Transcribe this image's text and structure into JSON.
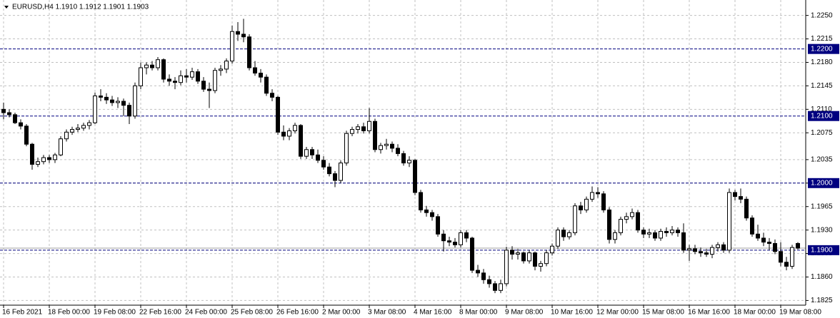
{
  "chart_data": {
    "type": "candlestick",
    "title": "EURUSD,H4  1.1910 1.1912 1.1901 1.1903",
    "ylim": [
      1.1818,
      1.2273
    ],
    "yticks": [
      {
        "value": 1.225,
        "label": "1.2250"
      },
      {
        "value": 1.2215,
        "label": "1.2215"
      },
      {
        "value": 1.218,
        "label": "1.2180"
      },
      {
        "value": 1.2145,
        "label": "1.2145"
      },
      {
        "value": 1.211,
        "label": "1.2110"
      },
      {
        "value": 1.2075,
        "label": "1.2075"
      },
      {
        "value": 1.2035,
        "label": "1.2035"
      },
      {
        "value": 1.2,
        "label": "1.2000"
      },
      {
        "value": 1.1965,
        "label": "1.1965"
      },
      {
        "value": 1.193,
        "label": "1.1930"
      },
      {
        "value": 1.1895,
        "label": "1.1895"
      },
      {
        "value": 1.186,
        "label": "1.1860"
      },
      {
        "value": 1.1825,
        "label": "1.1825"
      }
    ],
    "grid": true,
    "levels": [
      {
        "value": 1.22,
        "label": "1.2200"
      },
      {
        "value": 1.21,
        "label": "1.2100"
      },
      {
        "value": 1.2,
        "label": "1.2000"
      },
      {
        "value": 1.19,
        "label": "1.1900"
      }
    ],
    "colors": {
      "up": "#ffffff",
      "down": "#000000",
      "outline": "#000000",
      "level": "#000080",
      "price_line": "#a0a0a0"
    },
    "categories": [
      "16 Feb 2021",
      null,
      null,
      null,
      null,
      null,
      null,
      null,
      "18 Feb 00:00",
      null,
      null,
      null,
      null,
      null,
      null,
      null,
      "19 Feb 08:00",
      null,
      null,
      null,
      null,
      null,
      null,
      null,
      "22 Feb 16:00",
      null,
      null,
      null,
      null,
      null,
      null,
      null,
      "24 Feb 00:00",
      null,
      null,
      null,
      null,
      null,
      null,
      null,
      "25 Feb 08:00",
      null,
      null,
      null,
      null,
      null,
      null,
      null,
      "26 Feb 16:00",
      null,
      null,
      null,
      null,
      null,
      null,
      null,
      "2 Mar 00:00",
      null,
      null,
      null,
      null,
      null,
      null,
      null,
      "3 Mar 08:00",
      null,
      null,
      null,
      null,
      null,
      null,
      null,
      "4 Mar 16:00",
      null,
      null,
      null,
      null,
      null,
      null,
      null,
      "8 Mar 00:00",
      null,
      null,
      null,
      null,
      null,
      null,
      null,
      "9 Mar 08:00",
      null,
      null,
      null,
      null,
      null,
      null,
      null,
      "10 Mar 16:00",
      null,
      null,
      null,
      null,
      null,
      null,
      null,
      "12 Mar 00:00",
      null,
      null,
      null,
      null,
      null,
      null,
      null,
      "15 Mar 08:00",
      null,
      null,
      null,
      null,
      null,
      null,
      null,
      "16 Mar 16:00",
      null,
      null,
      null,
      null,
      null,
      null,
      null,
      "18 Mar 00:00",
      null,
      null,
      null,
      null,
      null,
      null,
      null,
      "19 Mar 08:00",
      null,
      null,
      null
    ],
    "candles": [
      [
        1.211,
        1.212,
        1.2095,
        1.2105
      ],
      [
        1.2105,
        1.211,
        1.2098,
        1.2102
      ],
      [
        1.2102,
        1.2105,
        1.2088,
        1.209
      ],
      [
        1.209,
        1.2095,
        1.208,
        1.2085
      ],
      [
        1.2085,
        1.2088,
        1.2055,
        1.2058
      ],
      [
        1.2058,
        1.206,
        1.202,
        1.2028
      ],
      [
        1.2028,
        1.2038,
        1.2024,
        1.2032
      ],
      [
        1.2032,
        1.2042,
        1.2028,
        1.2038
      ],
      [
        1.2038,
        1.2042,
        1.203,
        1.2035
      ],
      [
        1.2035,
        1.2045,
        1.203,
        1.2042
      ],
      [
        1.2042,
        1.207,
        1.204,
        1.2066
      ],
      [
        1.2066,
        1.208,
        1.2062,
        1.2076
      ],
      [
        1.2076,
        1.2084,
        1.2072,
        1.208
      ],
      [
        1.208,
        1.2088,
        1.2076,
        1.2082
      ],
      [
        1.2082,
        1.209,
        1.2078,
        1.2086
      ],
      [
        1.2086,
        1.2094,
        1.208,
        1.209
      ],
      [
        1.209,
        1.2135,
        1.2088,
        1.213
      ],
      [
        1.213,
        1.214,
        1.2122,
        1.2128
      ],
      [
        1.2128,
        1.2134,
        1.2118,
        1.2124
      ],
      [
        1.2124,
        1.213,
        1.2115,
        1.212
      ],
      [
        1.212,
        1.2128,
        1.2112,
        1.2122
      ],
      [
        1.2122,
        1.2126,
        1.21,
        1.2116
      ],
      [
        1.2116,
        1.212,
        1.2088,
        1.21
      ],
      [
        1.21,
        1.215,
        1.2096,
        1.2145
      ],
      [
        1.2145,
        1.218,
        1.214,
        1.2172
      ],
      [
        1.2172,
        1.218,
        1.2162,
        1.2176
      ],
      [
        1.2176,
        1.2182,
        1.2168,
        1.2172
      ],
      [
        1.2172,
        1.2188,
        1.2168,
        1.2184
      ],
      [
        1.2184,
        1.2186,
        1.215,
        1.2155
      ],
      [
        1.2155,
        1.2162,
        1.2145,
        1.2152
      ],
      [
        1.2152,
        1.2158,
        1.214,
        1.215
      ],
      [
        1.215,
        1.2168,
        1.2146,
        1.216
      ],
      [
        1.216,
        1.217,
        1.215,
        1.2158
      ],
      [
        1.2158,
        1.2172,
        1.2154,
        1.2166
      ],
      [
        1.2166,
        1.217,
        1.2148,
        1.2152
      ],
      [
        1.2152,
        1.2158,
        1.2136,
        1.214
      ],
      [
        1.214,
        1.215,
        1.2112,
        1.2138
      ],
      [
        1.2138,
        1.2172,
        1.2134,
        1.2168
      ],
      [
        1.2168,
        1.2176,
        1.216,
        1.217
      ],
      [
        1.217,
        1.2186,
        1.2164,
        1.2182
      ],
      [
        1.2182,
        1.2235,
        1.2178,
        1.2226
      ],
      [
        1.2226,
        1.224,
        1.2212,
        1.2222
      ],
      [
        1.2222,
        1.2245,
        1.221,
        1.2218
      ],
      [
        1.2218,
        1.2222,
        1.2168,
        1.2172
      ],
      [
        1.2172,
        1.2182,
        1.216,
        1.2164
      ],
      [
        1.2164,
        1.217,
        1.215,
        1.2158
      ],
      [
        1.2158,
        1.2162,
        1.213,
        1.2134
      ],
      [
        1.2134,
        1.214,
        1.2122,
        1.2128
      ],
      [
        1.2128,
        1.213,
        1.2072,
        1.2076
      ],
      [
        1.2076,
        1.2086,
        1.2064,
        1.207
      ],
      [
        1.207,
        1.2082,
        1.2064,
        1.2078
      ],
      [
        1.2078,
        1.209,
        1.2074,
        1.2086
      ],
      [
        1.2086,
        1.2088,
        1.2036,
        1.204
      ],
      [
        1.204,
        1.2054,
        1.2036,
        1.205
      ],
      [
        1.205,
        1.2054,
        1.2036,
        1.2042
      ],
      [
        1.2042,
        1.205,
        1.203,
        1.2034
      ],
      [
        1.2034,
        1.204,
        1.202,
        1.2024
      ],
      [
        1.2024,
        1.203,
        1.201,
        1.2014
      ],
      [
        1.2014,
        1.2018,
        1.1994,
        1.2004
      ],
      [
        1.2004,
        1.2034,
        1.2,
        1.203
      ],
      [
        1.203,
        1.2078,
        1.2026,
        1.2074
      ],
      [
        1.2074,
        1.2084,
        1.207,
        1.208
      ],
      [
        1.208,
        1.2088,
        1.2074,
        1.2084
      ],
      [
        1.2084,
        1.209,
        1.2074,
        1.2078
      ],
      [
        1.2078,
        1.2112,
        1.2074,
        1.2092
      ],
      [
        1.2092,
        1.2096,
        1.2046,
        1.205
      ],
      [
        1.205,
        1.206,
        1.2044,
        1.2056
      ],
      [
        1.2056,
        1.2066,
        1.205,
        1.2058
      ],
      [
        1.2058,
        1.2062,
        1.2046,
        1.2052
      ],
      [
        1.2052,
        1.2058,
        1.204,
        1.2044
      ],
      [
        1.2044,
        1.2048,
        1.2026,
        1.203
      ],
      [
        1.203,
        1.204,
        1.2024,
        1.2034
      ],
      [
        1.2034,
        1.2036,
        1.1982,
        1.1986
      ],
      [
        1.1986,
        1.199,
        1.1956,
        1.196
      ],
      [
        1.196,
        1.1966,
        1.195,
        1.1956
      ],
      [
        1.1956,
        1.196,
        1.1944,
        1.195
      ],
      [
        1.195,
        1.1954,
        1.192,
        1.1924
      ],
      [
        1.1924,
        1.193,
        1.1898,
        1.1914
      ],
      [
        1.1914,
        1.192,
        1.1906,
        1.1912
      ],
      [
        1.1912,
        1.1918,
        1.1904,
        1.1908
      ],
      [
        1.1908,
        1.193,
        1.1904,
        1.1926
      ],
      [
        1.1926,
        1.193,
        1.1912,
        1.1918
      ],
      [
        1.1918,
        1.192,
        1.1866,
        1.187
      ],
      [
        1.187,
        1.1878,
        1.186,
        1.1866
      ],
      [
        1.1866,
        1.1872,
        1.185,
        1.1856
      ],
      [
        1.1856,
        1.1862,
        1.1844,
        1.185
      ],
      [
        1.185,
        1.1854,
        1.1836,
        1.184
      ],
      [
        1.184,
        1.1856,
        1.1836,
        1.185
      ],
      [
        1.185,
        1.1905,
        1.1846,
        1.19
      ],
      [
        1.19,
        1.1906,
        1.1886,
        1.1894
      ],
      [
        1.1894,
        1.1902,
        1.1886,
        1.1896
      ],
      [
        1.1896,
        1.1898,
        1.188,
        1.1884
      ],
      [
        1.1884,
        1.19,
        1.188,
        1.1896
      ],
      [
        1.1896,
        1.1898,
        1.187,
        1.1876
      ],
      [
        1.1876,
        1.1884,
        1.1868,
        1.188
      ],
      [
        1.188,
        1.19,
        1.1876,
        1.1896
      ],
      [
        1.1896,
        1.191,
        1.1892,
        1.1906
      ],
      [
        1.1906,
        1.1934,
        1.1902,
        1.193
      ],
      [
        1.193,
        1.1934,
        1.1914,
        1.192
      ],
      [
        1.192,
        1.193,
        1.1916,
        1.1926
      ],
      [
        1.1926,
        1.197,
        1.1922,
        1.1966
      ],
      [
        1.1966,
        1.1972,
        1.1954,
        1.196
      ],
      [
        1.196,
        1.198,
        1.1956,
        1.1976
      ],
      [
        1.1976,
        1.1995,
        1.1972,
        1.1986
      ],
      [
        1.1986,
        1.1994,
        1.1978,
        1.1984
      ],
      [
        1.1984,
        1.1988,
        1.1956,
        1.196
      ],
      [
        1.196,
        1.1964,
        1.191,
        1.1916
      ],
      [
        1.1916,
        1.193,
        1.191,
        1.1926
      ],
      [
        1.1926,
        1.195,
        1.1922,
        1.1946
      ],
      [
        1.1946,
        1.1956,
        1.194,
        1.195
      ],
      [
        1.195,
        1.1962,
        1.1946,
        1.1956
      ],
      [
        1.1956,
        1.196,
        1.1926,
        1.193
      ],
      [
        1.193,
        1.1934,
        1.1918,
        1.1924
      ],
      [
        1.1924,
        1.1932,
        1.1918,
        1.1926
      ],
      [
        1.1926,
        1.193,
        1.1914,
        1.1918
      ],
      [
        1.1918,
        1.1932,
        1.1914,
        1.1928
      ],
      [
        1.1928,
        1.1934,
        1.192,
        1.1926
      ],
      [
        1.1926,
        1.1936,
        1.1922,
        1.193
      ],
      [
        1.193,
        1.1934,
        1.192,
        1.1926
      ],
      [
        1.1926,
        1.194,
        1.1896,
        1.19
      ],
      [
        1.19,
        1.1908,
        1.1884,
        1.1902
      ],
      [
        1.1902,
        1.1908,
        1.1894,
        1.1898
      ],
      [
        1.1898,
        1.1904,
        1.189,
        1.1896
      ],
      [
        1.1896,
        1.1902,
        1.189,
        1.1894
      ],
      [
        1.1894,
        1.1908,
        1.1888,
        1.1904
      ],
      [
        1.1904,
        1.1912,
        1.1898,
        1.1908
      ],
      [
        1.1908,
        1.1912,
        1.1896,
        1.19
      ],
      [
        1.19,
        1.1992,
        1.1896,
        1.1986
      ],
      [
        1.1986,
        1.199,
        1.1974,
        1.198
      ],
      [
        1.198,
        1.1992,
        1.197,
        1.1976
      ],
      [
        1.1976,
        1.198,
        1.1944,
        1.1948
      ],
      [
        1.1948,
        1.1952,
        1.192,
        1.1924
      ],
      [
        1.1924,
        1.1938,
        1.1914,
        1.1918
      ],
      [
        1.1918,
        1.1926,
        1.1906,
        1.1912
      ],
      [
        1.1912,
        1.1918,
        1.19,
        1.191
      ],
      [
        1.191,
        1.1916,
        1.1894,
        1.1898
      ],
      [
        1.1898,
        1.1912,
        1.1876,
        1.1882
      ],
      [
        1.1882,
        1.189,
        1.187,
        1.1876
      ],
      [
        1.1876,
        1.1908,
        1.1872,
        1.1904
      ],
      [
        1.191,
        1.1912,
        1.1901,
        1.1903
      ]
    ]
  }
}
